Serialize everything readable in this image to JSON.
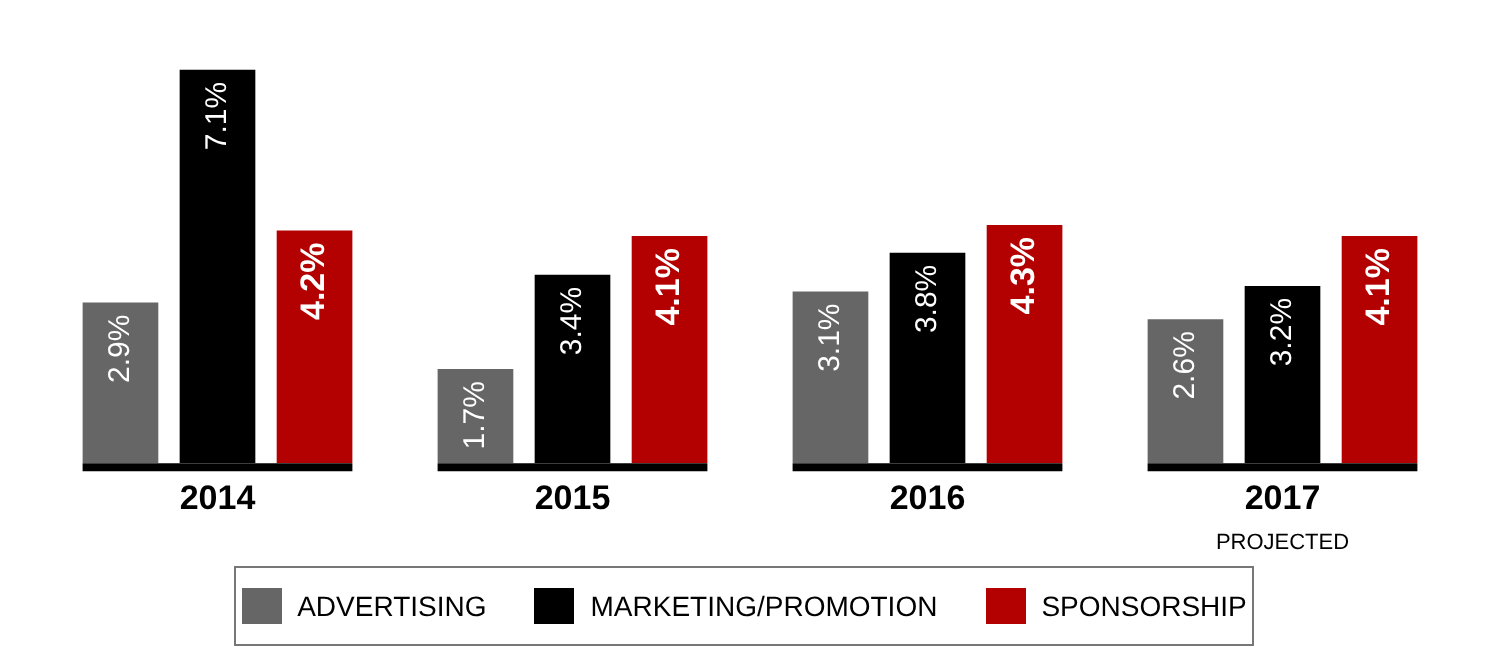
{
  "chart_data": {
    "type": "bar",
    "categories": [
      "2014",
      "2015",
      "2016",
      "2017"
    ],
    "series": [
      {
        "name": "ADVERTISING",
        "color": "#666666",
        "values": [
          2.9,
          1.7,
          3.1,
          2.6
        ],
        "value_labels": [
          "2.9%",
          "1.7%",
          "3.1%",
          "2.6%"
        ]
      },
      {
        "name": "MARKETING/PROMOTION",
        "color": "#000000",
        "values": [
          7.1,
          3.4,
          3.8,
          3.2
        ],
        "value_labels": [
          "7.1%",
          "3.4%",
          "3.8%",
          "3.2%"
        ]
      },
      {
        "name": "SPONSORSHIP",
        "color": "#b30000",
        "values": [
          4.2,
          4.1,
          4.3,
          4.1
        ],
        "value_labels": [
          "4.2%",
          "4.1%",
          "4.3%",
          "4.1%"
        ]
      }
    ],
    "annotations": [
      "PROJECTED"
    ],
    "legend": "bottom",
    "grid": false,
    "tick_labels": "x"
  }
}
